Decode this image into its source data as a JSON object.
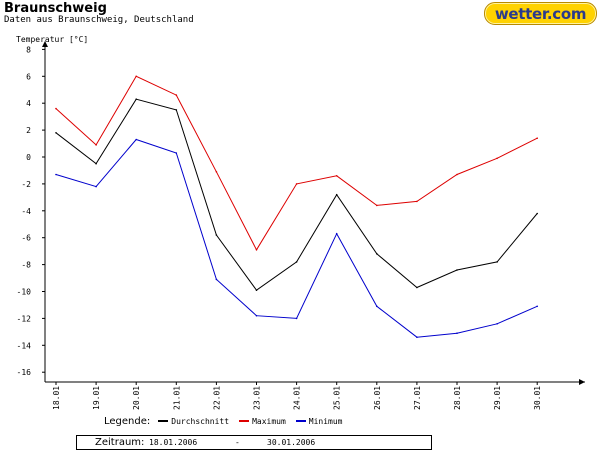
{
  "header": {
    "title": "Braunschweig",
    "subtitle": "Daten aus Braunschweig, Deutschland",
    "logo_text": "wetter.com"
  },
  "chart_data": {
    "type": "line",
    "ylabel": "Temperatur [°C]",
    "ylim": [
      -17,
      8
    ],
    "yticks": [
      8,
      6,
      4,
      2,
      0,
      -2,
      -4,
      -6,
      -8,
      -10,
      -12,
      -14,
      -16
    ],
    "categories": [
      "18.01",
      "19.01",
      "20.01",
      "21.01",
      "22.01",
      "23.01",
      "24.01",
      "25.01",
      "26.01",
      "27.01",
      "28.01",
      "29.01",
      "30.01"
    ],
    "grid": false,
    "series": [
      {
        "name": "Durchschnitt",
        "color": "#000000",
        "values": [
          1.8,
          -0.5,
          4.3,
          3.5,
          -5.8,
          -9.9,
          -7.8,
          -2.8,
          -7.2,
          -9.7,
          -8.4,
          -7.8,
          -4.2
        ]
      },
      {
        "name": "Maximum",
        "color": "#dd0000",
        "values": [
          3.6,
          0.9,
          6.0,
          4.6,
          -1.1,
          -6.9,
          -2.0,
          -1.4,
          -3.6,
          -3.3,
          -1.3,
          -0.1,
          1.4
        ]
      },
      {
        "name": "Minimum",
        "color": "#0000cc",
        "values": [
          -1.3,
          -2.2,
          1.3,
          0.3,
          -9.1,
          -11.8,
          -12.0,
          -5.7,
          -11.1,
          -13.4,
          -13.1,
          -12.4,
          -11.1
        ]
      }
    ]
  },
  "legend": {
    "title": "Legende:"
  },
  "period": {
    "label": "Zeitraum:",
    "from": "18.01.2006",
    "separator": "-",
    "to": "30.01.2006"
  }
}
